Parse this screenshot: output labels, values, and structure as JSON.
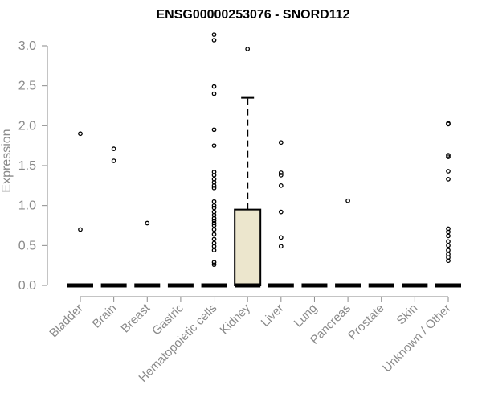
{
  "chart_data": {
    "type": "box",
    "title": "ENSG00000253076 - SNORD112",
    "xlabel": "",
    "ylabel": "Expression",
    "ylim": [
      0,
      3.15
    ],
    "yticks": [
      "0.0",
      "0.5",
      "1.0",
      "1.5",
      "2.0",
      "2.5",
      "3.0"
    ],
    "ytick_values": [
      0,
      0.5,
      1.0,
      1.5,
      2.0,
      2.5,
      3.0
    ],
    "grid": false,
    "box_fill": "#ece6cd",
    "categories": [
      "Bladder",
      "Brain",
      "Breast",
      "Gastric",
      "Hematopoietic cells",
      "Kidney",
      "Liver",
      "Lung",
      "Pancreas",
      "Prostate",
      "Skin",
      "Unknown / Other"
    ],
    "boxes": [
      {
        "category": "Bladder",
        "q1": 0,
        "median": 0,
        "q3": 0,
        "whisker_low": 0,
        "whisker_high": 0,
        "outliers": [
          1.9,
          0.7
        ]
      },
      {
        "category": "Brain",
        "q1": 0,
        "median": 0,
        "q3": 0,
        "whisker_low": 0,
        "whisker_high": 0,
        "outliers": [
          1.71,
          1.56
        ]
      },
      {
        "category": "Breast",
        "q1": 0,
        "median": 0,
        "q3": 0,
        "whisker_low": 0,
        "whisker_high": 0,
        "outliers": [
          0.78
        ]
      },
      {
        "category": "Gastric",
        "q1": 0,
        "median": 0,
        "q3": 0,
        "whisker_low": 0,
        "whisker_high": 0,
        "outliers": []
      },
      {
        "category": "Hematopoietic cells",
        "q1": 0,
        "median": 0,
        "q3": 0,
        "whisker_low": 0,
        "whisker_high": 0,
        "outliers": [
          3.14,
          3.07,
          2.49,
          2.4,
          1.95,
          1.75,
          1.42,
          1.38,
          1.33,
          1.29,
          1.25,
          1.22,
          1.05,
          1.0,
          0.97,
          0.92,
          0.88,
          0.84,
          0.81,
          0.78,
          0.75,
          0.7,
          0.64,
          0.58,
          0.53,
          0.49,
          0.44,
          0.29,
          0.26
        ]
      },
      {
        "category": "Kidney",
        "q1": 0,
        "median": 0,
        "q3": 0.95,
        "whisker_low": 0,
        "whisker_high": 2.35,
        "outliers": [
          2.96
        ]
      },
      {
        "category": "Liver",
        "q1": 0,
        "median": 0,
        "q3": 0,
        "whisker_low": 0,
        "whisker_high": 0,
        "outliers": [
          1.79,
          1.41,
          1.38,
          1.25,
          0.92,
          0.6,
          0.49
        ]
      },
      {
        "category": "Lung",
        "q1": 0,
        "median": 0,
        "q3": 0,
        "whisker_low": 0,
        "whisker_high": 0,
        "outliers": []
      },
      {
        "category": "Pancreas",
        "q1": 0,
        "median": 0,
        "q3": 0,
        "whisker_low": 0,
        "whisker_high": 0,
        "outliers": [
          1.06
        ]
      },
      {
        "category": "Prostate",
        "q1": 0,
        "median": 0,
        "q3": 0,
        "whisker_low": 0,
        "whisker_high": 0,
        "outliers": []
      },
      {
        "category": "Skin",
        "q1": 0,
        "median": 0,
        "q3": 0,
        "whisker_low": 0,
        "whisker_high": 0,
        "outliers": []
      },
      {
        "category": "Unknown / Other",
        "q1": 0,
        "median": 0,
        "q3": 0,
        "whisker_low": 0,
        "whisker_high": 0,
        "outliers": [
          2.03,
          2.02,
          1.63,
          1.61,
          1.43,
          1.33,
          0.71,
          0.67,
          0.62,
          0.55,
          0.5,
          0.44,
          0.39,
          0.35,
          0.31
        ]
      }
    ]
  }
}
